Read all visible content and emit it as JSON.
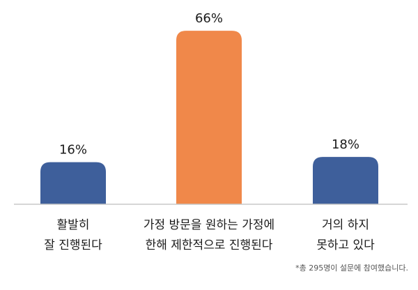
{
  "chart_data": {
    "type": "bar",
    "categories": [
      [
        "활발히",
        "잘 진행된다"
      ],
      [
        "가정 방문을 원하는 가정에",
        "한해 제한적으로 진행된다"
      ],
      [
        "거의 하지",
        "못하고 있다"
      ]
    ],
    "values": [
      16,
      66,
      18
    ],
    "data_labels": [
      "16%",
      "66%",
      "18%"
    ],
    "ylim": [
      0,
      70
    ],
    "grid": false,
    "legend": "none",
    "colors": [
      "#3e5f9b",
      "#f0884a",
      "#3e5f9b"
    ],
    "axis_color": "#c8c8c8",
    "footnote": "*총 295명이 설문에 참여했습니다."
  }
}
